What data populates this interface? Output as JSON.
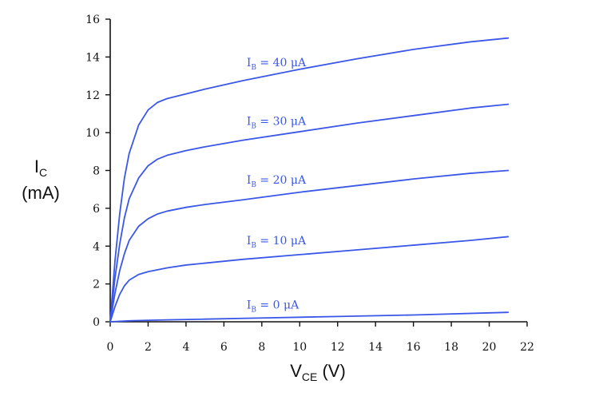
{
  "chart_data": {
    "type": "line",
    "title": "",
    "xlabel": {
      "main": "V",
      "sub": "CE",
      "suffix": " (V)"
    },
    "ylabel": {
      "main": "I",
      "sub": "C",
      "line2": "(mA)"
    },
    "xlim": [
      0,
      22
    ],
    "ylim": [
      0,
      16
    ],
    "x_ticks": [
      0,
      2,
      4,
      6,
      8,
      10,
      12,
      14,
      16,
      18,
      20,
      22
    ],
    "y_ticks": [
      0,
      2,
      4,
      6,
      8,
      10,
      12,
      14,
      16
    ],
    "grid": false,
    "series": [
      {
        "name": "IB = 0 μA",
        "label_main": "I",
        "label_sub": "B",
        "label_rest": " = 0 μA",
        "label_at": [
          7.2,
          0.7
        ],
        "x": [
          0,
          1,
          2,
          3,
          5,
          8,
          12,
          16,
          21
        ],
        "y": [
          0,
          0.05,
          0.08,
          0.1,
          0.14,
          0.2,
          0.28,
          0.36,
          0.5
        ]
      },
      {
        "name": "IB = 10 μA",
        "label_main": "I",
        "label_sub": "B",
        "label_rest": " = 10 μA",
        "label_at": [
          7.2,
          4.1
        ],
        "x": [
          0,
          0.25,
          0.5,
          0.75,
          1,
          1.5,
          2,
          2.5,
          3,
          4,
          5,
          7,
          10,
          13,
          16,
          19,
          21
        ],
        "y": [
          0,
          0.8,
          1.45,
          1.9,
          2.2,
          2.5,
          2.65,
          2.75,
          2.85,
          3.0,
          3.1,
          3.3,
          3.55,
          3.8,
          4.05,
          4.3,
          4.5
        ]
      },
      {
        "name": "IB = 20 μA",
        "label_main": "I",
        "label_sub": "B",
        "label_rest": " = 20 μA",
        "label_at": [
          7.2,
          7.3
        ],
        "x": [
          0,
          0.25,
          0.5,
          0.75,
          1,
          1.5,
          2,
          2.5,
          3,
          4,
          5,
          7,
          10,
          13,
          16,
          19,
          21
        ],
        "y": [
          0,
          1.5,
          2.7,
          3.6,
          4.3,
          5.05,
          5.45,
          5.7,
          5.85,
          6.05,
          6.2,
          6.45,
          6.85,
          7.2,
          7.55,
          7.85,
          8.0
        ]
      },
      {
        "name": "IB = 30 μA",
        "label_main": "I",
        "label_sub": "B",
        "label_rest": " = 30 μA",
        "label_at": [
          7.2,
          10.4
        ],
        "x": [
          0,
          0.25,
          0.5,
          0.75,
          1,
          1.5,
          2,
          2.5,
          3,
          4,
          5,
          7,
          10,
          13,
          16,
          19,
          21
        ],
        "y": [
          0,
          2.3,
          4.1,
          5.5,
          6.5,
          7.6,
          8.25,
          8.6,
          8.8,
          9.05,
          9.25,
          9.6,
          10.05,
          10.5,
          10.9,
          11.3,
          11.5
        ]
      },
      {
        "name": "IB = 40 μA",
        "label_main": "I",
        "label_sub": "B",
        "label_rest": " = 40 μA",
        "label_at": [
          7.2,
          13.5
        ],
        "x": [
          0,
          0.25,
          0.5,
          0.75,
          1,
          1.5,
          2,
          2.5,
          3,
          4,
          5,
          7,
          10,
          13,
          16,
          19,
          21
        ],
        "y": [
          0,
          3.2,
          5.7,
          7.6,
          8.9,
          10.4,
          11.2,
          11.6,
          11.8,
          12.05,
          12.3,
          12.75,
          13.35,
          13.9,
          14.4,
          14.8,
          15.0
        ]
      }
    ],
    "line_color": "#3b57e8",
    "axis_color": "#111111"
  }
}
